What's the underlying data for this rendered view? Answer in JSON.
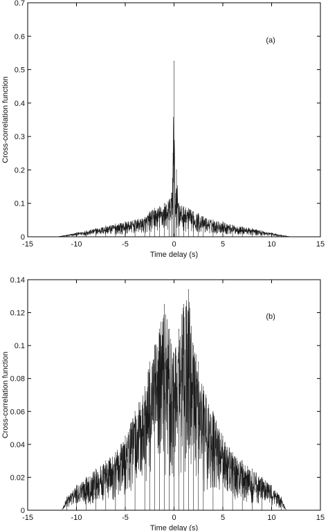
{
  "chart_data": [
    {
      "type": "line",
      "annotation": "(a)",
      "xlabel": "Time delay (s)",
      "ylabel": "Cross-correlation function",
      "xlim": [
        -15,
        15
      ],
      "ylim": [
        0,
        0.7
      ],
      "xticks": [
        "-15",
        "-10",
        "-5",
        "0",
        "5",
        "10",
        "15"
      ],
      "yticks": [
        "0",
        "0.1",
        "0.2",
        "0.3",
        "0.4",
        "0.5",
        "0.6",
        "0.7"
      ],
      "grid": false,
      "series": [
        {
          "color": "#1a1a1a",
          "x": [
            -12,
            -11,
            -10,
            -9,
            -8,
            -7,
            -6,
            -5,
            -4,
            -3,
            -2.5,
            -2,
            -1.5,
            -1,
            -0.5,
            -0.25,
            -0.1,
            0,
            0.1,
            0.25,
            0.5,
            1,
            1.5,
            2,
            2.5,
            3,
            4,
            5,
            6,
            7,
            8,
            9,
            10,
            11,
            12
          ],
          "y": [
            0.0,
            0.005,
            0.012,
            0.018,
            0.025,
            0.032,
            0.038,
            0.045,
            0.05,
            0.058,
            0.075,
            0.085,
            0.09,
            0.1,
            0.11,
            0.13,
            0.25,
            0.525,
            0.12,
            0.2,
            0.1,
            0.09,
            0.085,
            0.075,
            0.07,
            0.06,
            0.05,
            0.045,
            0.035,
            0.03,
            0.025,
            0.018,
            0.012,
            0.005,
            0.0
          ]
        }
      ]
    },
    {
      "type": "line",
      "annotation": "(b)",
      "xlabel": "Time delay (s)",
      "ylabel": "Cross-correlation function",
      "xlim": [
        -15,
        15
      ],
      "ylim": [
        0,
        0.14
      ],
      "xticks": [
        "-15",
        "-10",
        "-5",
        "0",
        "5",
        "10",
        "15"
      ],
      "yticks": [
        "0",
        "0.02",
        "0.04",
        "0.06",
        "0.08",
        "0.1",
        "0.12",
        "0.14"
      ],
      "grid": false,
      "series": [
        {
          "color": "#1a1a1a",
          "x": [
            -11.5,
            -11,
            -10,
            -9,
            -8,
            -7,
            -6,
            -5,
            -4,
            -3,
            -2.5,
            -2,
            -1.5,
            -1,
            -0.5,
            0,
            0.5,
            1,
            1.5,
            2,
            2.5,
            3,
            4,
            5,
            6,
            7,
            8,
            9,
            10,
            11,
            11.5
          ],
          "y": [
            0.0,
            0.008,
            0.015,
            0.02,
            0.025,
            0.03,
            0.035,
            0.045,
            0.06,
            0.075,
            0.09,
            0.1,
            0.11,
            0.125,
            0.11,
            0.095,
            0.11,
            0.125,
            0.134,
            0.1,
            0.09,
            0.075,
            0.06,
            0.045,
            0.035,
            0.03,
            0.025,
            0.02,
            0.015,
            0.008,
            0.0
          ]
        }
      ]
    }
  ]
}
